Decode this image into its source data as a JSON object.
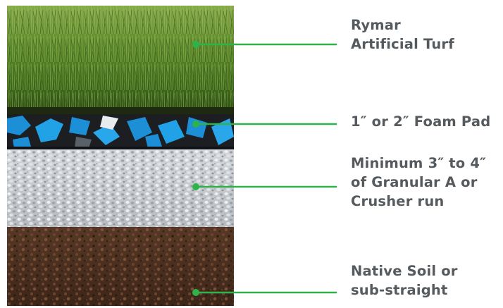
{
  "layers": [
    {
      "id": "turf",
      "lines": [
        "Rymar",
        "Artificial Turf"
      ]
    },
    {
      "id": "foam",
      "lines": [
        "1″ or 2″ Foam Pad"
      ]
    },
    {
      "id": "granular",
      "lines": [
        "Minimum 3″ to 4″",
        "of Granular A or",
        "Crusher run"
      ]
    },
    {
      "id": "soil",
      "lines": [
        "Native Soil or",
        "sub-straight"
      ]
    }
  ],
  "colors": {
    "leader": "#2eb34a",
    "label_text": "#555a5e",
    "turf": "#5d8a2c",
    "foam_blue": "#1d8fd6",
    "foam_black": "#1c1e22",
    "gravel": "#c9ccd0",
    "soil": "#4a2f1f"
  }
}
